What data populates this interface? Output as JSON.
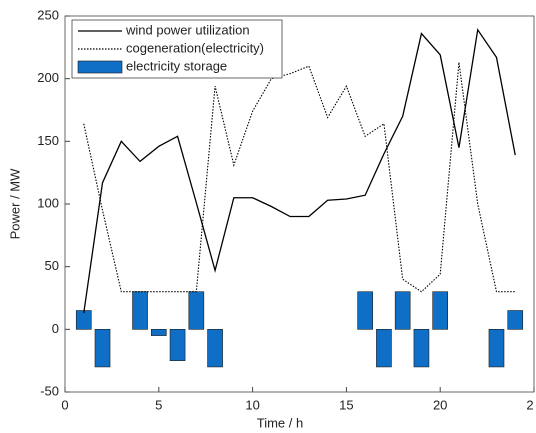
{
  "chart_data": {
    "type": "combo",
    "xlabel": "Time / h",
    "ylabel": "Power / MW",
    "x": [
      1,
      2,
      3,
      4,
      5,
      6,
      7,
      8,
      9,
      10,
      11,
      12,
      13,
      14,
      15,
      16,
      17,
      18,
      19,
      20,
      21,
      22,
      23,
      24
    ],
    "series": [
      {
        "name": "wind power utilization",
        "kind": "line",
        "dash": "solid",
        "color": "#000000",
        "values": [
          13,
          117,
          150,
          134,
          146,
          154,
          101,
          47,
          105,
          105,
          98,
          90,
          90,
          103,
          104,
          107,
          140,
          170,
          236,
          219,
          145,
          239,
          217,
          139
        ]
      },
      {
        "name": "cogeneration(electricity)",
        "kind": "line",
        "dash": "dotted",
        "color": "#000000",
        "values": [
          164,
          95,
          30,
          30,
          30,
          30,
          30,
          194,
          131,
          174,
          200,
          204,
          210,
          169,
          194,
          154,
          164,
          40,
          30,
          44,
          213,
          100,
          30,
          30
        ]
      },
      {
        "name": "electricity storage",
        "kind": "bar",
        "color": "#0f6fc6",
        "values": [
          15,
          -30,
          0,
          30,
          -5,
          -25,
          30,
          -30,
          0,
          0,
          0,
          0,
          0,
          0,
          0,
          30,
          -30,
          30,
          -30,
          30,
          0,
          0,
          -30,
          15
        ]
      }
    ],
    "xlim": [
      0,
      25
    ],
    "xticks": [
      0,
      5,
      10,
      15,
      20,
      {
        "value": 25,
        "label": "2"
      }
    ],
    "ylim": [
      -50,
      250
    ],
    "yticks": [
      -50,
      0,
      50,
      100,
      150,
      200,
      250
    ],
    "legend": "upper-left"
  }
}
